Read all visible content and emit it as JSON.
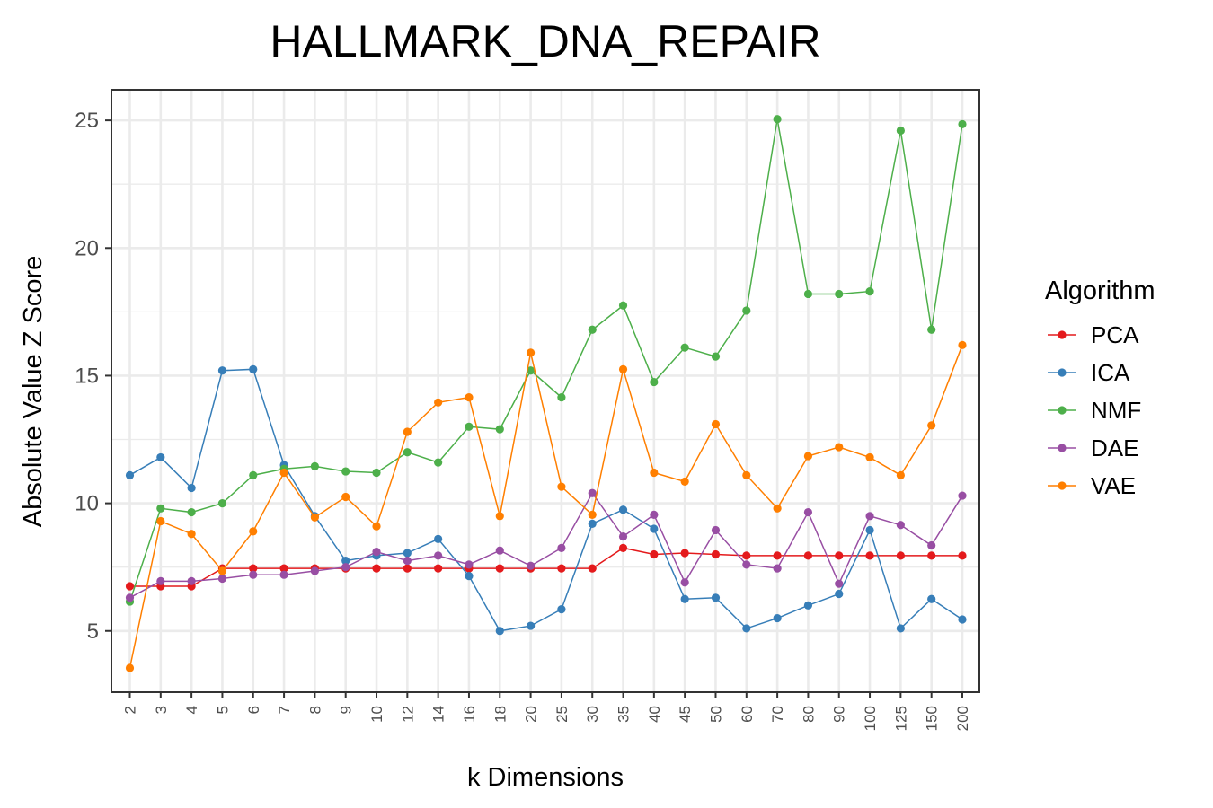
{
  "chart_data": {
    "type": "line",
    "title": "HALLMARK_DNA_REPAIR",
    "xlabel": "k Dimensions",
    "ylabel": "Absolute Value Z Score",
    "categories": [
      "2",
      "3",
      "4",
      "5",
      "6",
      "7",
      "8",
      "9",
      "10",
      "12",
      "14",
      "16",
      "18",
      "20",
      "25",
      "30",
      "35",
      "40",
      "45",
      "50",
      "60",
      "70",
      "80",
      "90",
      "100",
      "125",
      "150",
      "200"
    ],
    "yticks": [
      5,
      10,
      15,
      20,
      25
    ],
    "ylim": [
      2.6,
      26.2
    ],
    "grid": true,
    "legend": {
      "title": "Algorithm",
      "placement": "right"
    },
    "series": [
      {
        "name": "PCA",
        "color": "#e41a1c",
        "values": [
          6.75,
          6.75,
          6.75,
          7.45,
          7.45,
          7.45,
          7.45,
          7.45,
          7.45,
          7.45,
          7.45,
          7.45,
          7.45,
          7.45,
          7.45,
          7.45,
          8.25,
          8.0,
          8.05,
          8.0,
          7.95,
          7.95,
          7.95,
          7.95,
          7.95,
          7.95,
          7.95,
          7.95
        ]
      },
      {
        "name": "ICA",
        "color": "#377eb8",
        "values": [
          11.1,
          11.8,
          10.6,
          15.2,
          15.25,
          11.5,
          9.5,
          7.75,
          7.95,
          8.05,
          8.6,
          7.15,
          5.0,
          5.2,
          5.85,
          9.2,
          9.75,
          9.0,
          6.25,
          6.3,
          5.1,
          5.5,
          6.0,
          6.45,
          8.95,
          5.1,
          6.25,
          5.45
        ]
      },
      {
        "name": "NMF",
        "color": "#4daf4a",
        "values": [
          6.15,
          9.8,
          9.65,
          10.0,
          11.1,
          11.35,
          11.45,
          11.25,
          11.2,
          12.0,
          11.6,
          13.0,
          12.9,
          15.2,
          14.15,
          16.8,
          17.75,
          14.75,
          16.1,
          15.75,
          17.55,
          25.05,
          18.2,
          18.2,
          18.3,
          24.6,
          16.8,
          24.85
        ]
      },
      {
        "name": "DAE",
        "color": "#984ea3",
        "values": [
          6.3,
          6.95,
          6.95,
          7.05,
          7.2,
          7.2,
          7.35,
          7.5,
          8.1,
          7.75,
          7.95,
          7.6,
          8.15,
          7.55,
          8.25,
          10.4,
          8.7,
          9.55,
          6.9,
          8.95,
          7.6,
          7.45,
          9.65,
          6.85,
          9.5,
          9.15,
          8.35,
          10.3
        ]
      },
      {
        "name": "VAE",
        "color": "#ff7f00",
        "values": [
          3.55,
          9.3,
          8.8,
          7.35,
          8.9,
          11.2,
          9.45,
          10.25,
          9.1,
          12.8,
          13.95,
          14.15,
          9.5,
          15.9,
          10.65,
          9.55,
          15.25,
          11.2,
          10.85,
          13.1,
          11.1,
          9.8,
          11.85,
          12.2,
          11.8,
          11.1,
          13.05,
          16.2
        ]
      }
    ]
  }
}
